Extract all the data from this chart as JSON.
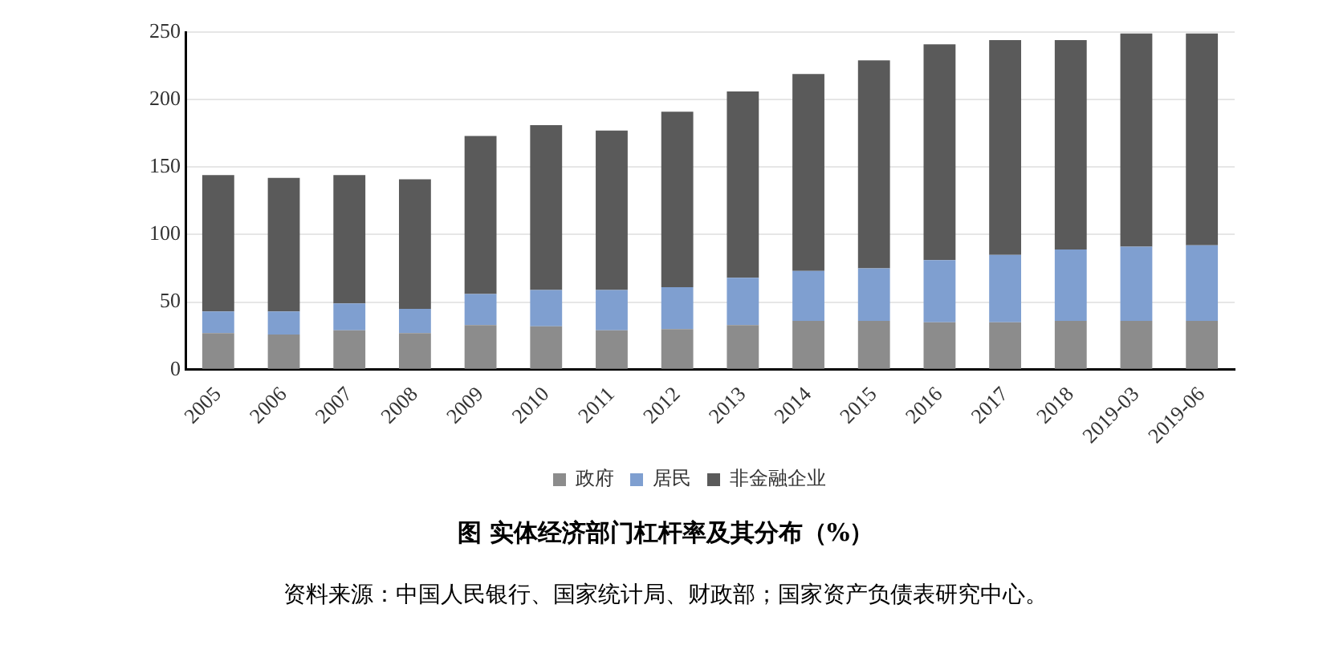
{
  "chart_data": {
    "type": "bar",
    "title": "图  实体经济部门杠杆率及其分布（%）",
    "annotations": [
      "资料来源：中国人民银行、国家统计局、财政部；国家资产负债表研究中心。"
    ],
    "categories": [
      "2005",
      "2006",
      "2007",
      "2008",
      "2009",
      "2010",
      "2011",
      "2012",
      "2013",
      "2014",
      "2015",
      "2016",
      "2017",
      "2018",
      "2019-03",
      "2019-06"
    ],
    "stacked": true,
    "ylim": [
      0,
      250
    ],
    "yticks": [
      0,
      50,
      100,
      150,
      200,
      250
    ],
    "grid": "y",
    "legend": "bottom",
    "series": [
      {
        "name": "政府",
        "color": "#8c8c8c",
        "values": [
          27,
          26,
          29,
          27,
          33,
          32,
          29,
          30,
          33,
          36,
          36,
          35,
          35,
          36,
          36,
          36
        ]
      },
      {
        "name": "居民",
        "color": "#7f9fd0",
        "values": [
          16,
          17,
          20,
          18,
          23,
          27,
          30,
          31,
          35,
          37,
          39,
          46,
          50,
          53,
          55,
          56
        ]
      },
      {
        "name": "非金融企业",
        "color": "#5a5a5a",
        "values": [
          101,
          99,
          95,
          96,
          117,
          122,
          118,
          130,
          138,
          146,
          154,
          160,
          159,
          155,
          158,
          157
        ]
      }
    ]
  }
}
